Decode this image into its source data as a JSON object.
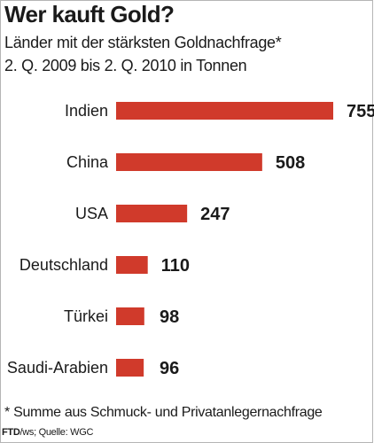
{
  "header": {
    "title": "Wer kauft Gold?",
    "subtitle_line1": "Länder mit der stärksten Goldnachfrage*",
    "subtitle_line2": "2. Q. 2009 bis 2. Q. 2010 in Tonnen"
  },
  "chart_data": {
    "type": "bar",
    "orientation": "horizontal",
    "title": "Wer kauft Gold?",
    "subtitle": "Länder mit der stärksten Goldnachfrage* 2. Q. 2009 bis 2. Q. 2010 in Tonnen",
    "categories": [
      "Indien",
      "China",
      "USA",
      "Deutschland",
      "Türkei",
      "Saudi-Arabien"
    ],
    "values": [
      755,
      508,
      247,
      110,
      98,
      96
    ],
    "data_labels": [
      "755",
      "508",
      "247",
      "110",
      "98",
      "96"
    ],
    "xlim": [
      0,
      755
    ],
    "grid": false,
    "legend": "none",
    "bar_color": "#d03a2b"
  },
  "footer": {
    "footnote": "* Summe aus Schmuck- und Privatanlegernachfrage",
    "credit_bold": "FTD",
    "credit_rest": "/ws; Quelle: WGC"
  }
}
